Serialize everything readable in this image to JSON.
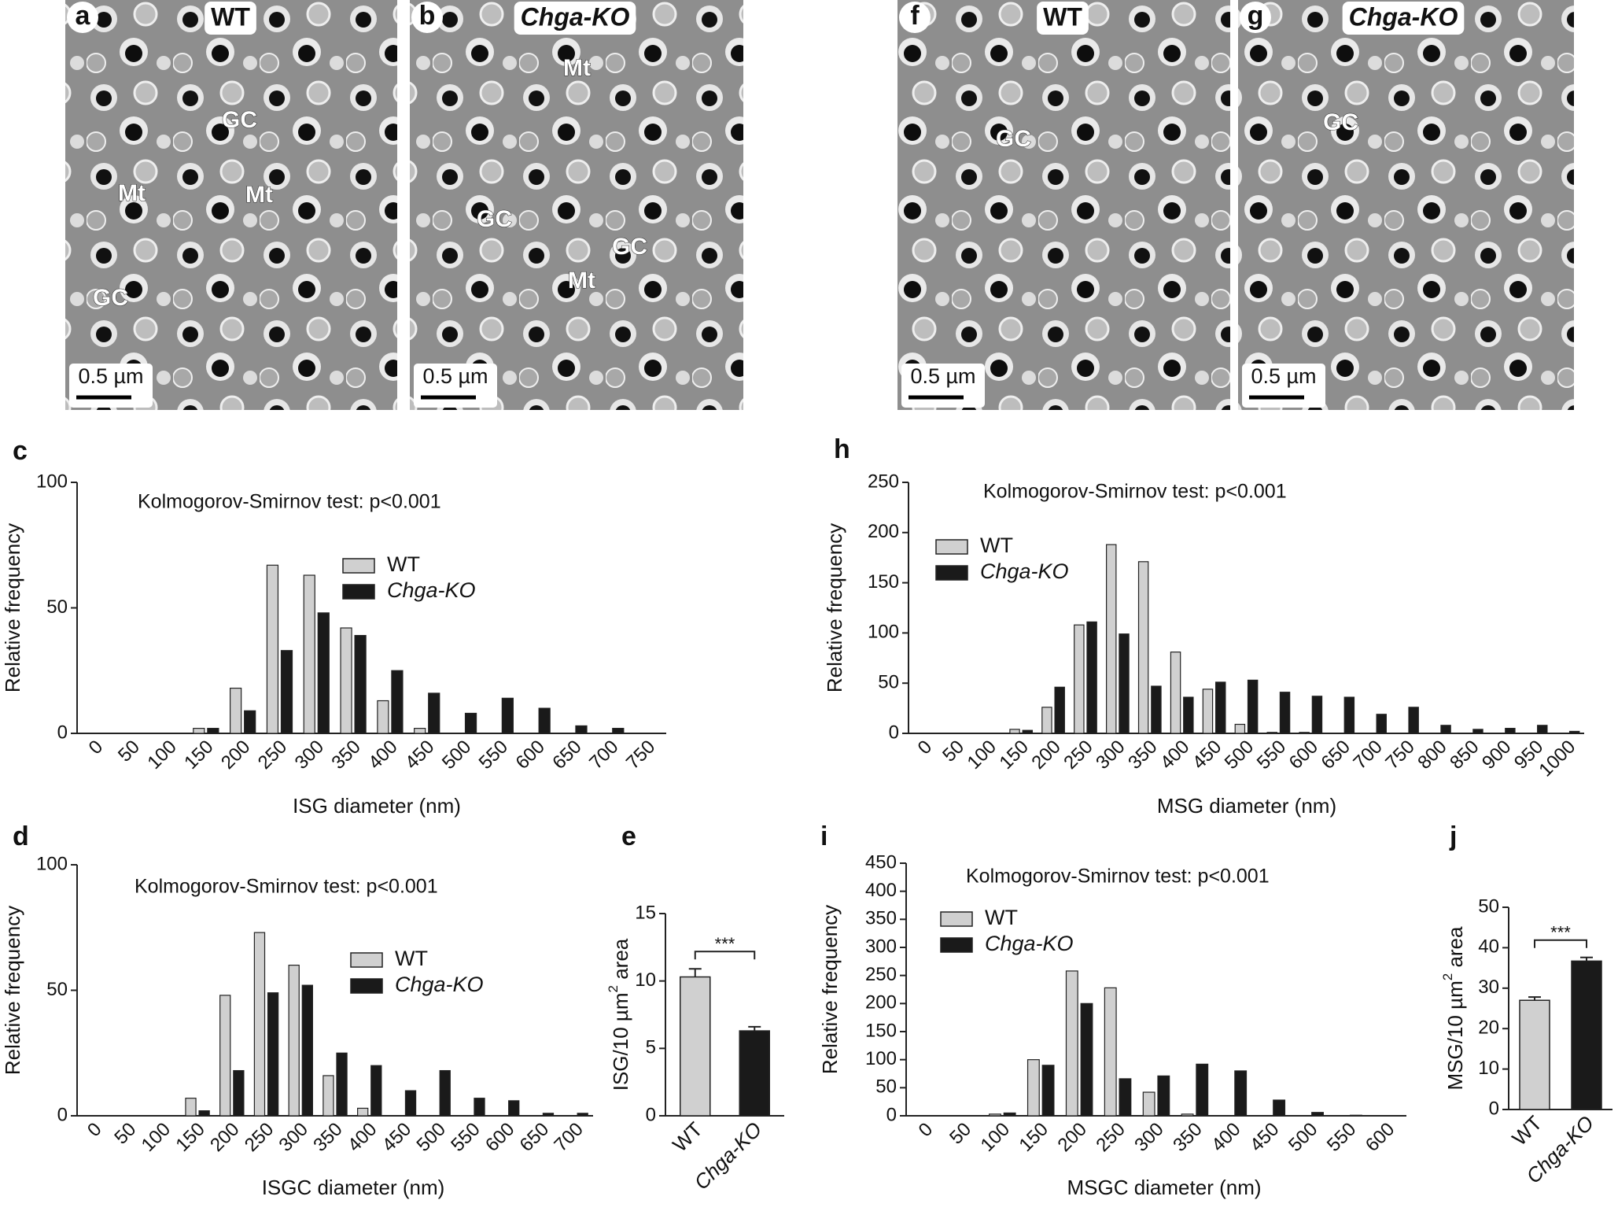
{
  "micrographs": [
    {
      "label": "a",
      "title": "WT",
      "scale": "0.5 µm",
      "annotations": [
        "GC",
        "Mt",
        "Mt",
        "GC"
      ]
    },
    {
      "label": "b",
      "title": "Chga-KO",
      "scale": "0.5 µm",
      "annotations": [
        "Mt",
        "GC",
        "GC",
        "Mt"
      ]
    },
    {
      "label": "f",
      "title": "WT",
      "scale": "0.5 µm",
      "annotations": [
        "GC"
      ]
    },
    {
      "label": "g",
      "title": "Chga-KO",
      "scale": "0.5 µm",
      "annotations": [
        "GC"
      ]
    }
  ],
  "chart_data": [
    {
      "type": "bar",
      "label": "c",
      "annotation": "Kolmogorov-Smirnov test: p<0.001",
      "xlabel": "ISG diameter (nm)",
      "ylabel": "Relative frequency",
      "categories": [
        "0",
        "50",
        "100",
        "150",
        "200",
        "250",
        "300",
        "350",
        "400",
        "450",
        "500",
        "550",
        "600",
        "650",
        "700",
        "750"
      ],
      "ylim": [
        0,
        100
      ],
      "yticks": [
        0,
        50,
        100
      ],
      "series": [
        {
          "name": "WT",
          "color": "#d0d0d0",
          "values": [
            0,
            0,
            0,
            2,
            18,
            67,
            63,
            42,
            13,
            2,
            0,
            0,
            0,
            0,
            0,
            0
          ]
        },
        {
          "name": "Chga-KO",
          "color": "#1a1a1a",
          "values": [
            0,
            0,
            0,
            2,
            9,
            33,
            48,
            39,
            25,
            16,
            8,
            14,
            10,
            3,
            2,
            0
          ]
        }
      ]
    },
    {
      "type": "bar",
      "label": "h",
      "annotation": "Kolmogorov-Smirnov test: p<0.001",
      "xlabel": "MSG diameter (nm)",
      "ylabel": "Relative frequency",
      "categories": [
        "0",
        "50",
        "100",
        "150",
        "200",
        "250",
        "300",
        "350",
        "400",
        "450",
        "500",
        "550",
        "600",
        "650",
        "700",
        "750",
        "800",
        "850",
        "900",
        "950",
        "1000"
      ],
      "ylim": [
        0,
        250
      ],
      "yticks": [
        0,
        50,
        100,
        150,
        200,
        250
      ],
      "series": [
        {
          "name": "WT",
          "color": "#d0d0d0",
          "values": [
            0,
            0,
            0,
            4,
            26,
            108,
            188,
            171,
            81,
            44,
            9,
            1,
            1,
            0,
            0,
            0,
            0,
            0,
            0,
            0,
            0
          ]
        },
        {
          "name": "Chga-KO",
          "color": "#1a1a1a",
          "values": [
            0,
            0,
            0,
            3,
            46,
            111,
            99,
            47,
            36,
            51,
            53,
            41,
            37,
            36,
            19,
            26,
            8,
            4,
            5,
            8,
            2
          ]
        }
      ]
    },
    {
      "type": "bar",
      "label": "d",
      "annotation": "Kolmogorov-Smirnov test: p<0.001",
      "xlabel": "ISGC diameter (nm)",
      "ylabel": "Relative frequency",
      "categories": [
        "0",
        "50",
        "100",
        "150",
        "200",
        "250",
        "300",
        "350",
        "400",
        "450",
        "500",
        "550",
        "600",
        "650",
        "700"
      ],
      "ylim": [
        0,
        100
      ],
      "yticks": [
        0,
        50,
        100
      ],
      "series": [
        {
          "name": "WT",
          "color": "#d0d0d0",
          "values": [
            0,
            0,
            0,
            7,
            48,
            73,
            60,
            16,
            3,
            0,
            0,
            0,
            0,
            0,
            0
          ]
        },
        {
          "name": "Chga-KO",
          "color": "#1a1a1a",
          "values": [
            0,
            0,
            0,
            2,
            18,
            49,
            52,
            25,
            20,
            10,
            18,
            7,
            6,
            1,
            1
          ]
        }
      ]
    },
    {
      "type": "bar",
      "label": "e",
      "ylabel": "ISG/10 µm",
      "ylabel_sup": "2",
      "ylabel_end": " area",
      "significance": "***",
      "categories": [
        "WT",
        "Chga-KO"
      ],
      "colors": [
        "#d0d0d0",
        "#1a1a1a"
      ],
      "values": [
        10.3,
        6.3
      ],
      "errors": [
        0.6,
        0.3
      ],
      "ylim": [
        0,
        15
      ],
      "yticks": [
        0,
        5,
        10,
        15
      ]
    },
    {
      "type": "bar",
      "label": "i",
      "annotation": "Kolmogorov-Smirnov test: p<0.001",
      "xlabel": "MSGC diameter (nm)",
      "ylabel": "Relative frequency",
      "categories": [
        "0",
        "50",
        "100",
        "150",
        "200",
        "250",
        "300",
        "350",
        "400",
        "450",
        "500",
        "550",
        "600"
      ],
      "ylim": [
        0,
        450
      ],
      "yticks": [
        0,
        50,
        100,
        150,
        200,
        250,
        300,
        350,
        400,
        450
      ],
      "series": [
        {
          "name": "WT",
          "color": "#d0d0d0",
          "values": [
            0,
            0,
            3,
            100,
            258,
            228,
            42,
            3,
            0,
            0,
            0,
            0,
            0
          ]
        },
        {
          "name": "Chga-KO",
          "color": "#1a1a1a",
          "values": [
            0,
            0,
            5,
            90,
            200,
            66,
            71,
            92,
            80,
            28,
            6,
            1,
            0
          ]
        }
      ]
    },
    {
      "type": "bar",
      "label": "j",
      "ylabel": "MSG/10 µm",
      "ylabel_sup": "2",
      "ylabel_end": " area",
      "significance": "***",
      "categories": [
        "WT",
        "Chga-KO"
      ],
      "colors": [
        "#d0d0d0",
        "#1a1a1a"
      ],
      "values": [
        27,
        36.7
      ],
      "errors": [
        0.8,
        0.9
      ],
      "ylim": [
        0,
        50
      ],
      "yticks": [
        0,
        10,
        20,
        30,
        40,
        50
      ]
    }
  ]
}
